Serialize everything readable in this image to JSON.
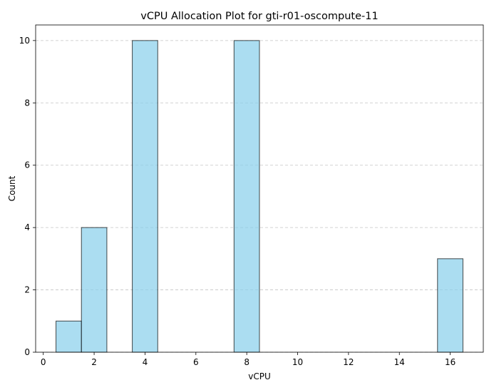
{
  "chart_data": {
    "type": "bar",
    "title": "vCPU Allocation Plot for gti-r01-oscompute-11",
    "xlabel": "vCPU",
    "ylabel": "Count",
    "bin_width": 1,
    "bars": [
      {
        "x": 1,
        "value": 1
      },
      {
        "x": 2,
        "value": 4
      },
      {
        "x": 4,
        "value": 10
      },
      {
        "x": 8,
        "value": 10
      },
      {
        "x": 16,
        "value": 3
      }
    ],
    "xlim": [
      -0.3,
      17.3
    ],
    "ylim": [
      0,
      10.5
    ],
    "xticks": [
      0,
      2,
      4,
      6,
      8,
      10,
      12,
      14,
      16
    ],
    "yticks": [
      0,
      2,
      4,
      6,
      8,
      10
    ],
    "grid": {
      "axis": "y",
      "style": "dashed"
    },
    "bar_fill": "#87CEEB",
    "bar_edge": "#000000"
  }
}
